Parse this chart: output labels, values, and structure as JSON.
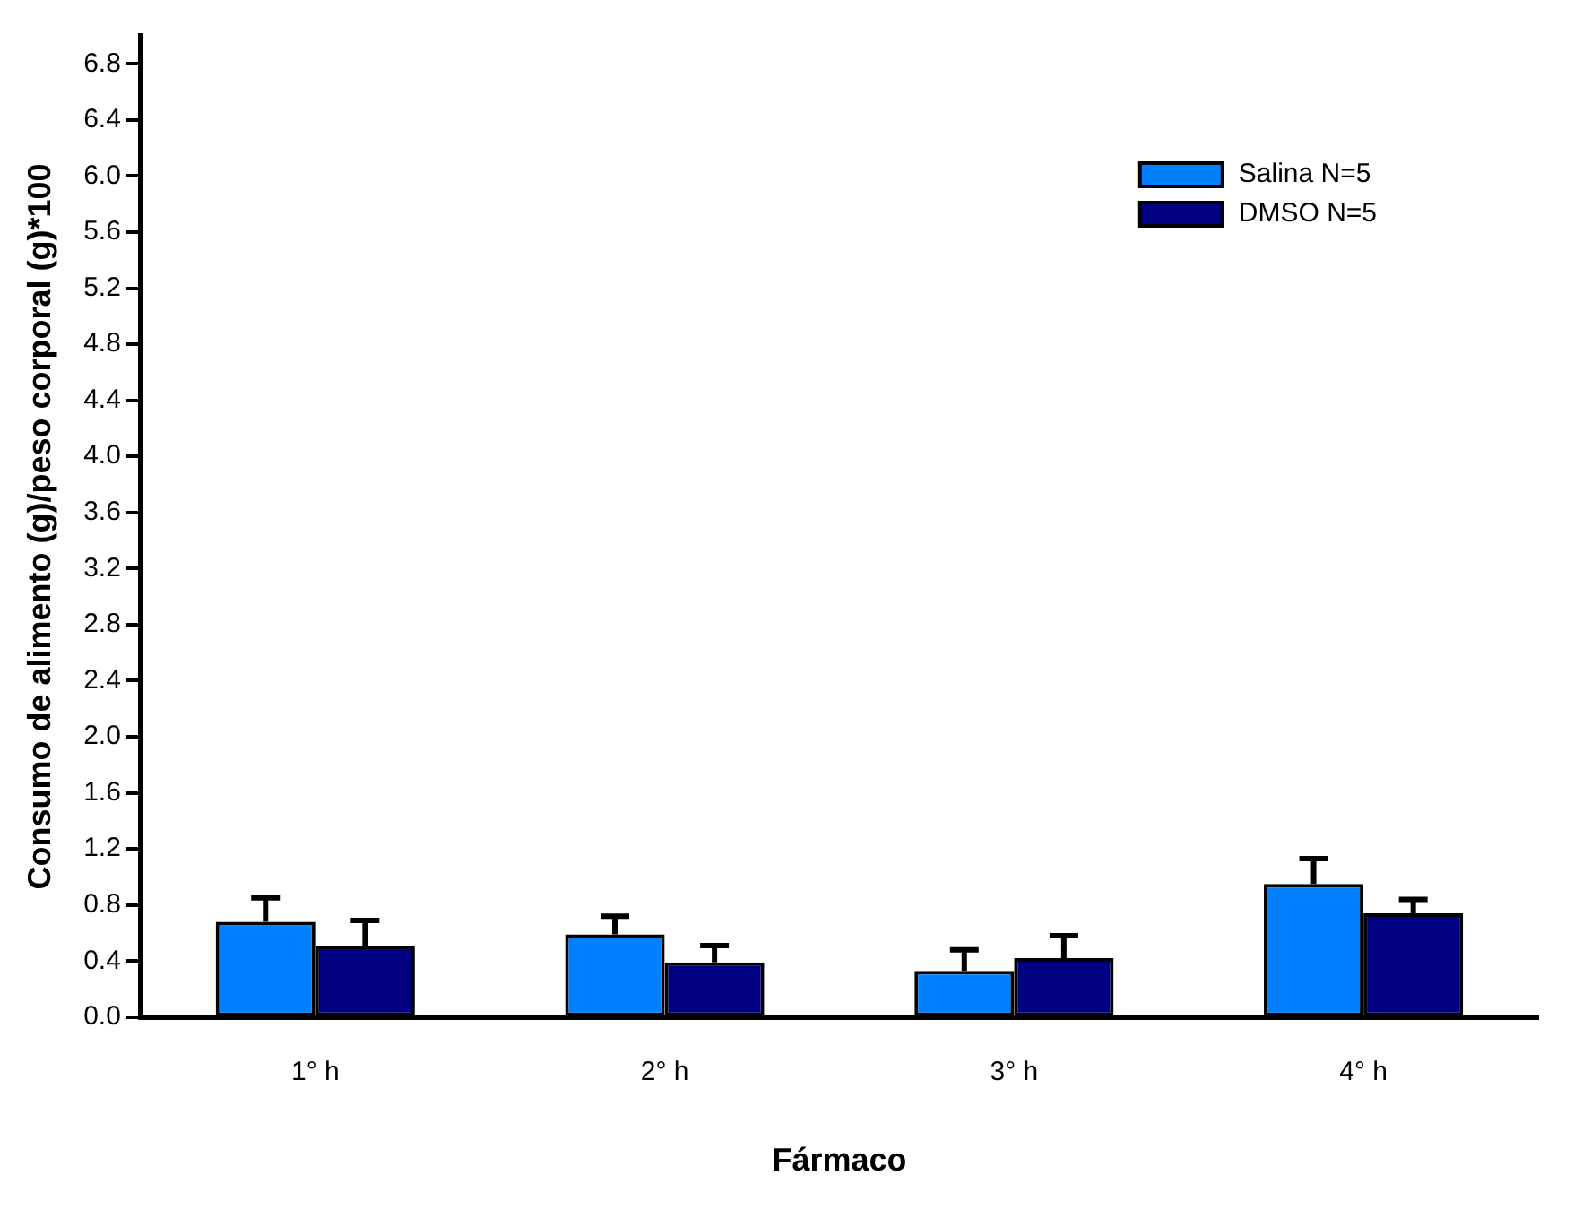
{
  "chart_data": {
    "type": "bar",
    "xlabel": "Fármaco",
    "ylabel": "Consumo de alimento (g)/peso corporal (g)*100",
    "categories": [
      "1° h",
      "2° h",
      "3° h",
      "4° h"
    ],
    "series": [
      {
        "name": "Salina N=5",
        "color": "#0080ff",
        "values": [
          0.68,
          0.59,
          0.33,
          0.95
        ],
        "errors": [
          [
            0.68,
            0.85
          ],
          [
            0.59,
            0.72
          ],
          [
            0.33,
            0.48
          ],
          [
            0.95,
            1.13
          ]
        ]
      },
      {
        "name": "DMSO N=5",
        "color": "#000080",
        "values": [
          0.51,
          0.39,
          0.42,
          0.74
        ],
        "errors": [
          [
            0.51,
            0.69
          ],
          [
            0.39,
            0.51
          ],
          [
            0.42,
            0.58
          ],
          [
            0.74,
            0.84
          ]
        ]
      }
    ],
    "ylim": [
      0,
      7.0
    ],
    "yticks": [
      {
        "value": 0,
        "label": "0.0"
      },
      {
        "value": 0.4,
        "label": "0.4"
      },
      {
        "value": 0.8,
        "label": "0.8"
      },
      {
        "value": 1.2,
        "label": "1.2"
      },
      {
        "value": 1.6,
        "label": "1.6"
      },
      {
        "value": 2.0,
        "label": "2.0"
      },
      {
        "value": 2.4,
        "label": "2.4"
      },
      {
        "value": 2.8,
        "label": "2.8"
      },
      {
        "value": 3.2,
        "label": "3.2"
      },
      {
        "value": 3.6,
        "label": "3.6"
      },
      {
        "value": 4.0,
        "label": "4.0"
      },
      {
        "value": 4.4,
        "label": "4.4"
      },
      {
        "value": 4.8,
        "label": "4.8"
      },
      {
        "value": 5.2,
        "label": "5.2"
      },
      {
        "value": 5.6,
        "label": "5.6"
      },
      {
        "value": 6.0,
        "label": "6.0"
      },
      {
        "value": 6.4,
        "label": "6.4"
      },
      {
        "value": 6.8,
        "label": "6.8"
      }
    ],
    "grid": false,
    "legend": "top right"
  }
}
